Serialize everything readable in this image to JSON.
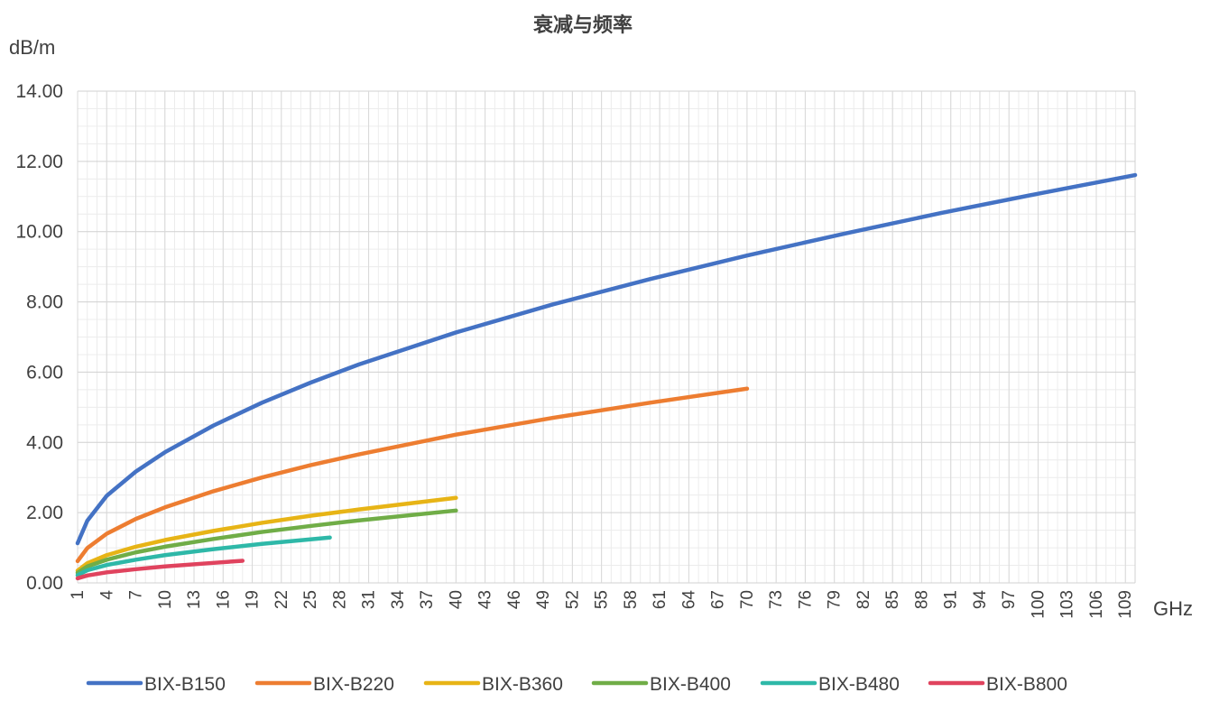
{
  "chart_data": {
    "type": "line",
    "title": "衰减与频率",
    "ylabel": "dB/m",
    "xlabel": "GHz",
    "ylim": [
      0,
      14
    ],
    "yticks": [
      "0.00",
      "2.00",
      "4.00",
      "6.00",
      "8.00",
      "10.00",
      "12.00",
      "14.00"
    ],
    "xlim": [
      1,
      110
    ],
    "xticks": [
      "1",
      "4",
      "7",
      "10",
      "13",
      "16",
      "19",
      "22",
      "25",
      "28",
      "31",
      "34",
      "37",
      "40",
      "43",
      "46",
      "49",
      "52",
      "55",
      "58",
      "61",
      "64",
      "67",
      "70",
      "73",
      "76",
      "79",
      "82",
      "85",
      "88",
      "91",
      "94",
      "97",
      "100",
      "103",
      "106",
      "109"
    ],
    "grid": true,
    "legend_position": "bottom",
    "series": [
      {
        "name": "BIX-B150",
        "color": "#4472C4",
        "x": [
          1,
          2,
          4,
          7,
          10,
          15,
          20,
          25,
          30,
          40,
          50,
          60,
          70,
          80,
          90,
          100,
          110
        ],
        "y": [
          1.13,
          1.77,
          2.48,
          3.17,
          3.72,
          4.48,
          5.13,
          5.7,
          6.22,
          7.13,
          7.93,
          8.65,
          9.32,
          9.94,
          10.53,
          11.08,
          11.61
        ]
      },
      {
        "name": "BIX-B220",
        "color": "#ED7D31",
        "x": [
          1,
          2,
          4,
          7,
          10,
          15,
          20,
          25,
          30,
          40,
          50,
          60,
          70
        ],
        "y": [
          0.62,
          0.99,
          1.4,
          1.82,
          2.15,
          2.61,
          3.0,
          3.35,
          3.66,
          4.22,
          4.7,
          5.13,
          5.53
        ]
      },
      {
        "name": "BIX-B360",
        "color": "#E7B416",
        "x": [
          1,
          2,
          4,
          7,
          10,
          15,
          20,
          25,
          30,
          40
        ],
        "y": [
          0.35,
          0.56,
          0.79,
          1.03,
          1.22,
          1.48,
          1.71,
          1.91,
          2.09,
          2.42
        ]
      },
      {
        "name": "BIX-B400",
        "color": "#70AD47",
        "x": [
          1,
          2,
          4,
          7,
          10,
          15,
          20,
          25,
          30,
          40
        ],
        "y": [
          0.29,
          0.47,
          0.66,
          0.87,
          1.03,
          1.25,
          1.45,
          1.62,
          1.78,
          2.06
        ]
      },
      {
        "name": "BIX-B480",
        "color": "#2EB8A8",
        "x": [
          1,
          2,
          4,
          7,
          10,
          15,
          20,
          27
        ],
        "y": [
          0.22,
          0.36,
          0.51,
          0.66,
          0.79,
          0.96,
          1.11,
          1.29
        ]
      },
      {
        "name": "BIX-B800",
        "color": "#E0435E",
        "x": [
          1,
          2,
          4,
          7,
          10,
          15,
          18
        ],
        "y": [
          0.13,
          0.21,
          0.3,
          0.39,
          0.47,
          0.57,
          0.63
        ]
      }
    ]
  }
}
